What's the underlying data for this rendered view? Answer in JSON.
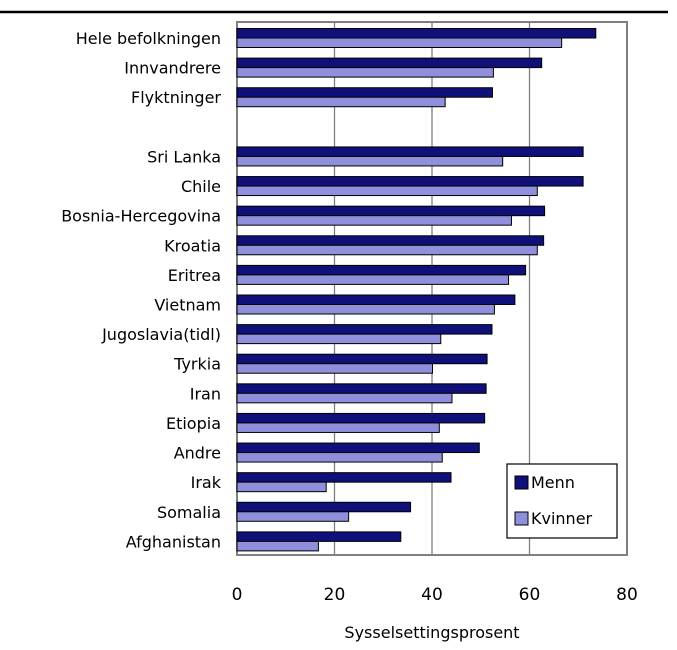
{
  "chart_data": {
    "type": "bar",
    "orientation": "horizontal",
    "title": "",
    "xlabel": "Sysselsettingsprosent",
    "ylabel": "",
    "xlim": [
      0,
      80
    ],
    "xticks": [
      0,
      20,
      40,
      60,
      80
    ],
    "grid": true,
    "legend_position": "bottom-right",
    "categories": [
      "Hele befolkningen",
      "Innvandrere",
      "Flyktninger",
      "",
      "Sri Lanka",
      "Chile",
      "Bosnia-Hercegovina",
      "Kroatia",
      "Eritrea",
      "Vietnam",
      "Jugoslavia(tidl)",
      "Tyrkia",
      "Iran",
      "Etiopia",
      "Andre",
      "Irak",
      "Somalia",
      "Afghanistan"
    ],
    "series": [
      {
        "name": "Menn",
        "color": "#10107a",
        "values": [
          73.6,
          62.5,
          52.4,
          null,
          71.0,
          71.0,
          63.1,
          62.9,
          59.2,
          57.0,
          52.3,
          51.3,
          51.1,
          50.8,
          49.7,
          43.9,
          35.6,
          33.6
        ]
      },
      {
        "name": "Kvinner",
        "color": "#8f8fdc",
        "values": [
          66.6,
          52.6,
          42.7,
          null,
          54.5,
          61.6,
          56.3,
          61.6,
          55.7,
          52.8,
          41.8,
          40.1,
          44.1,
          41.5,
          42.1,
          18.3,
          22.9,
          16.7
        ]
      }
    ]
  }
}
